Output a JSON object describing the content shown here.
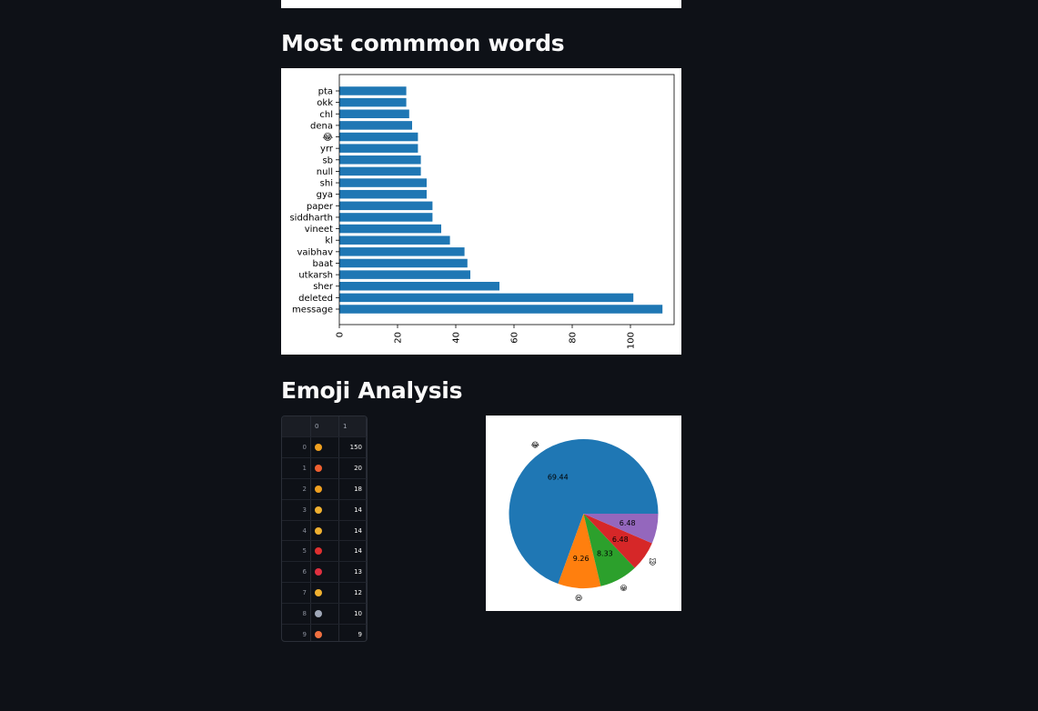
{
  "sections": {
    "words_title": "Most commmon words",
    "emoji_title": "Emoji Analysis"
  },
  "chart_data": [
    {
      "type": "bar",
      "orientation": "horizontal",
      "title": "",
      "categories": [
        "pta",
        "okk",
        "chl",
        "dena",
        "😂",
        "yrr",
        "sb",
        "null",
        "shi",
        "gya",
        "paper",
        "siddharth",
        "vineet",
        "kl",
        "vaibhav",
        "baat",
        "utkarsh",
        "sher",
        "deleted",
        "message"
      ],
      "values": [
        23,
        23,
        24,
        25,
        27,
        27,
        28,
        28,
        30,
        30,
        32,
        32,
        35,
        38,
        43,
        44,
        45,
        55,
        101,
        111
      ],
      "xlim": [
        0,
        115
      ],
      "xticks": [
        "0",
        "20",
        "40",
        "60",
        "80",
        "100"
      ]
    },
    {
      "type": "pie",
      "title": "",
      "labels": [
        "😂",
        "😆",
        "😀",
        "🐱",
        ""
      ],
      "values": [
        69.44,
        9.26,
        8.33,
        6.48,
        6.48
      ],
      "value_labels": [
        "69.44",
        "9.26",
        "8.33",
        "6.48",
        "6.48"
      ],
      "colors": [
        "#1f77b4",
        "#ff7f0e",
        "#2ca02c",
        "#d62728",
        "#9467bd"
      ]
    }
  ],
  "emoji_table": {
    "columns": [
      "",
      "0",
      "1"
    ],
    "rows": [
      {
        "index": "0",
        "emoji": "😂",
        "count": "150",
        "color": "#f0a020"
      },
      {
        "index": "1",
        "emoji": "😍",
        "count": "20",
        "color": "#f06030"
      },
      {
        "index": "2",
        "emoji": "😆",
        "count": "18",
        "color": "#f0a020"
      },
      {
        "index": "3",
        "emoji": "🙀",
        "count": "14",
        "color": "#f0b030"
      },
      {
        "index": "4",
        "emoji": "😋",
        "count": "14",
        "color": "#f0b030"
      },
      {
        "index": "5",
        "emoji": "🚩",
        "count": "14",
        "color": "#e03030"
      },
      {
        "index": "6",
        "emoji": "⭕",
        "count": "13",
        "color": "#e03040"
      },
      {
        "index": "7",
        "emoji": "👍",
        "count": "12",
        "color": "#f0b030"
      },
      {
        "index": "8",
        "emoji": "📅",
        "count": "10",
        "color": "#a0a8b8"
      },
      {
        "index": "9",
        "emoji": "🥰",
        "count": "9",
        "color": "#f07040"
      }
    ]
  }
}
